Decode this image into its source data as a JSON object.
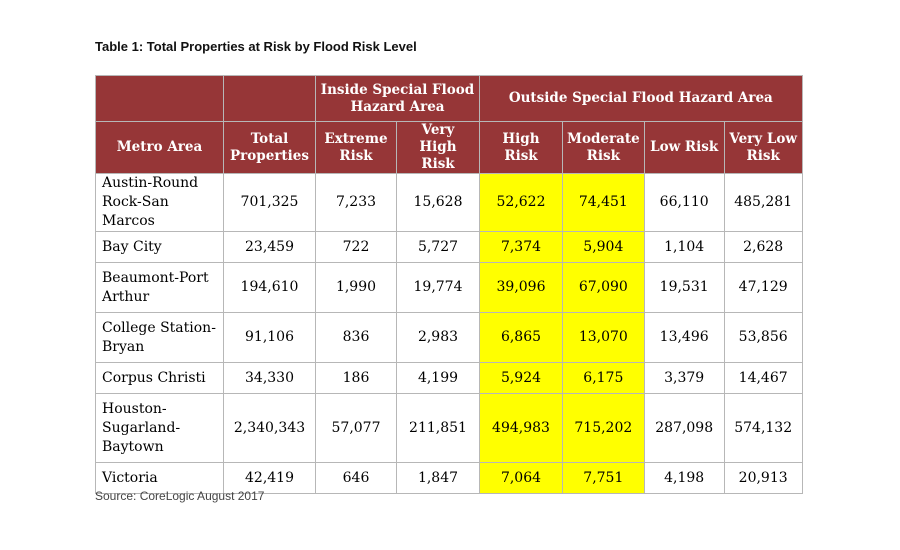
{
  "title": "Table 1: Total Properties at Risk by Flood Risk Level",
  "group_headers": {
    "inside": "Inside Special Flood Hazard Area",
    "outside": "Outside Special Flood Hazard Area"
  },
  "columns": [
    "Metro Area",
    "Total Properties",
    "Extreme Risk",
    "Very High Risk",
    "High Risk",
    "Moderate Risk",
    "Low Risk",
    "Very Low Risk"
  ],
  "highlight_color": "#ffff00",
  "header_color": "#963637",
  "rows": [
    {
      "metro": "Austin-Round Rock-San Marcos",
      "total": "701,325",
      "extreme": "7,233",
      "very_high": "15,628",
      "high": "52,622",
      "moderate": "74,451",
      "low": "66,110",
      "very_low": "485,281"
    },
    {
      "metro": "Bay City",
      "total": "23,459",
      "extreme": "722",
      "very_high": "5,727",
      "high": "7,374",
      "moderate": "5,904",
      "low": "1,104",
      "very_low": "2,628"
    },
    {
      "metro": "Beaumont-Port Arthur",
      "total": "194,610",
      "extreme": "1,990",
      "very_high": "19,774",
      "high": "39,096",
      "moderate": "67,090",
      "low": "19,531",
      "very_low": "47,129"
    },
    {
      "metro": "College Station-Bryan",
      "total": "91,106",
      "extreme": "836",
      "very_high": "2,983",
      "high": "6,865",
      "moderate": "13,070",
      "low": "13,496",
      "very_low": "53,856"
    },
    {
      "metro": "Corpus Christi",
      "total": "34,330",
      "extreme": "186",
      "very_high": "4,199",
      "high": "5,924",
      "moderate": "6,175",
      "low": "3,379",
      "very_low": "14,467"
    },
    {
      "metro": "Houston-Sugarland-Baytown",
      "total": "2,340,343",
      "extreme": "57,077",
      "very_high": "211,851",
      "high": "494,983",
      "moderate": "715,202",
      "low": "287,098",
      "very_low": "574,132"
    },
    {
      "metro": "Victoria",
      "total": "42,419",
      "extreme": "646",
      "very_high": "1,847",
      "high": "7,064",
      "moderate": "7,751",
      "low": "4,198",
      "very_low": "20,913"
    }
  ],
  "source": "Source: CoreLogic August 2017"
}
